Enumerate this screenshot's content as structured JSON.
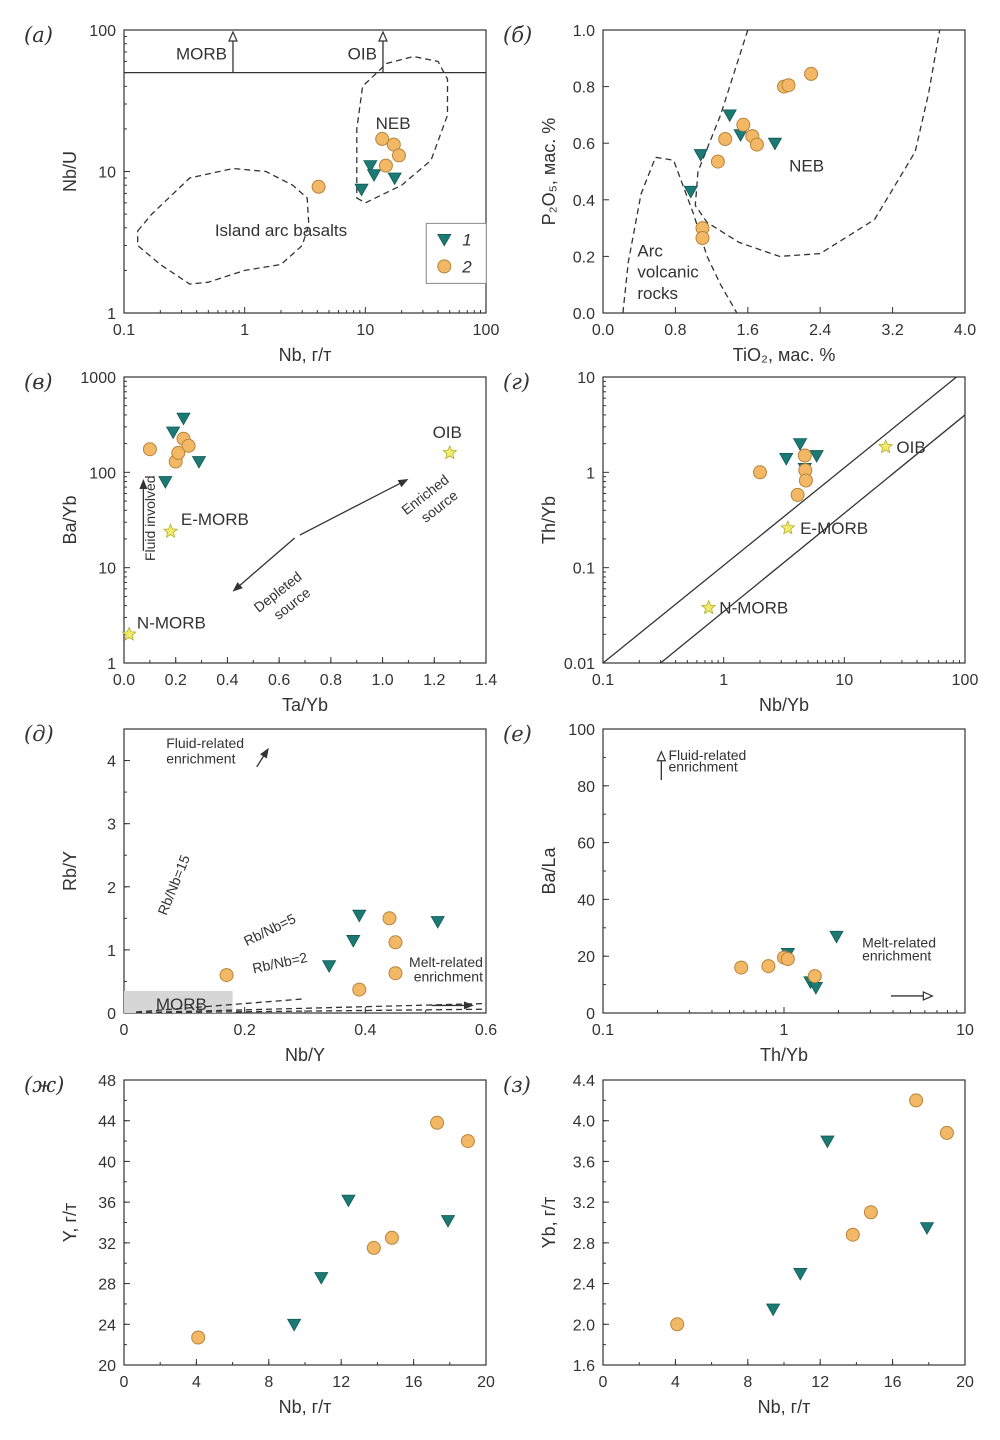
{
  "chart_data": [
    {
      "id": "a",
      "panel_label": "(а)",
      "type": "scatter",
      "xlabel": "Nb, г/т",
      "ylabel": "Nb/U",
      "x_scale": "log",
      "y_scale": "log",
      "xlim": [
        0.1,
        100
      ],
      "ylim": [
        1,
        100
      ],
      "x_ticks": [
        {
          "v": 0.1,
          "label": "0.1"
        },
        {
          "v": 1,
          "label": "1"
        },
        {
          "v": 10,
          "label": "10"
        },
        {
          "v": 100,
          "label": "100"
        }
      ],
      "y_ticks": [
        {
          "v": 1,
          "label": "1"
        },
        {
          "v": 10,
          "label": "10"
        },
        {
          "v": 100,
          "label": "100"
        }
      ],
      "minor_ticks": true,
      "annotations": [
        "MORB",
        "OIB",
        "NEB",
        "Island arc basalts"
      ],
      "reference_line": {
        "y": 50
      },
      "fields": [
        {
          "name": "NEB",
          "polygon": [
            [
              8.5,
              6.5
            ],
            [
              10,
              6
            ],
            [
              20,
              8
            ],
            [
              35,
              12
            ],
            [
              48,
              25
            ],
            [
              48,
              45
            ],
            [
              40,
              60
            ],
            [
              25,
              65
            ],
            [
              15,
              58
            ],
            [
              9.5,
              40
            ],
            [
              8.5,
              20
            ],
            [
              8.5,
              10
            ]
          ]
        },
        {
          "name": "Island arc basalts",
          "polygon": [
            [
              0.13,
              3.8
            ],
            [
              0.17,
              5
            ],
            [
              0.35,
              9
            ],
            [
              0.8,
              10.5
            ],
            [
              1.5,
              10
            ],
            [
              2.5,
              8
            ],
            [
              3.3,
              6.5
            ],
            [
              3.4,
              4.2
            ],
            [
              3,
              3
            ],
            [
              2,
              2.2
            ],
            [
              1,
              2
            ],
            [
              0.5,
              1.65
            ],
            [
              0.35,
              1.6
            ],
            [
              0.2,
              2.2
            ],
            [
              0.13,
              3
            ]
          ]
        }
      ],
      "legend": [
        {
          "marker": "triangle",
          "label": "1"
        },
        {
          "marker": "circle",
          "label": "2"
        }
      ],
      "series": [
        {
          "marker": "triangle",
          "x": [
            9.3,
            11,
            11.8,
            17.5
          ],
          "y": [
            7.5,
            11,
            9.5,
            9
          ]
        },
        {
          "marker": "circle",
          "x": [
            4.1,
            13.8,
            14.8,
            17.2,
            19
          ],
          "y": [
            7.8,
            17,
            11,
            15.5,
            13
          ]
        }
      ]
    },
    {
      "id": "b",
      "panel_label": "(б)",
      "type": "scatter",
      "xlabel": "TiO₂, мас. %",
      "ylabel": "P₂O₅, мас. %",
      "x_scale": "linear",
      "y_scale": "linear",
      "xlim": [
        0,
        4
      ],
      "ylim": [
        0,
        1
      ],
      "x_ticks": [
        {
          "v": 0,
          "label": "0.0"
        },
        {
          "v": 0.8,
          "label": "0.8"
        },
        {
          "v": 1.6,
          "label": "1.6"
        },
        {
          "v": 2.4,
          "label": "2.4"
        },
        {
          "v": 3.2,
          "label": "3.2"
        },
        {
          "v": 4,
          "label": "4.0"
        }
      ],
      "y_ticks": [
        {
          "v": 0,
          "label": "0.0"
        },
        {
          "v": 0.2,
          "label": "0.2"
        },
        {
          "v": 0.4,
          "label": "0.4"
        },
        {
          "v": 0.6,
          "label": "0.6"
        },
        {
          "v": 0.8,
          "label": "0.8"
        },
        {
          "v": 1,
          "label": "1.0"
        }
      ],
      "annotations": [
        "NEB",
        "Arc",
        "volcanic",
        "rocks"
      ],
      "fields": [
        {
          "name": "NEB",
          "polyline": [
            [
              1.6,
              1.0
            ],
            [
              1.3,
              0.7
            ],
            [
              1.05,
              0.5
            ],
            [
              1.02,
              0.38
            ],
            [
              1.15,
              0.32
            ],
            [
              1.5,
              0.25
            ],
            [
              1.95,
              0.2
            ],
            [
              2.4,
              0.21
            ],
            [
              3.0,
              0.33
            ],
            [
              3.45,
              0.57
            ],
            [
              3.6,
              0.78
            ],
            [
              3.72,
              1.0
            ]
          ]
        },
        {
          "name": "Arc volcanic rocks",
          "polyline": [
            [
              0.22,
              0.0
            ],
            [
              0.28,
              0.18
            ],
            [
              0.42,
              0.42
            ],
            [
              0.58,
              0.55
            ],
            [
              0.78,
              0.54
            ],
            [
              1.0,
              0.35
            ],
            [
              1.15,
              0.2
            ],
            [
              1.3,
              0.1
            ],
            [
              1.48,
              0.0
            ]
          ]
        }
      ],
      "series": [
        {
          "marker": "triangle",
          "x": [
            0.97,
            1.08,
            1.4,
            1.52,
            1.9
          ],
          "y": [
            0.43,
            0.56,
            0.7,
            0.63,
            0.6
          ]
        },
        {
          "marker": "circle",
          "x": [
            1.1,
            1.1,
            1.27,
            1.35,
            1.55,
            1.65,
            1.7,
            2.0,
            2.05,
            2.3
          ],
          "y": [
            0.3,
            0.265,
            0.535,
            0.615,
            0.665,
            0.625,
            0.595,
            0.8,
            0.805,
            0.845
          ]
        }
      ]
    },
    {
      "id": "v",
      "panel_label": "(в)",
      "type": "scatter",
      "xlabel": "Ta/Yb",
      "ylabel": "Ba/Yb",
      "x_scale": "linear",
      "y_scale": "log",
      "xlim": [
        0,
        1.4
      ],
      "ylim": [
        1,
        1000
      ],
      "x_ticks": [
        {
          "v": 0,
          "label": "0.0"
        },
        {
          "v": 0.2,
          "label": "0.2"
        },
        {
          "v": 0.4,
          "label": "0.4"
        },
        {
          "v": 0.6,
          "label": "0.6"
        },
        {
          "v": 0.8,
          "label": "0.8"
        },
        {
          "v": 1.0,
          "label": "1.0"
        },
        {
          "v": 1.2,
          "label": "1.2"
        },
        {
          "v": 1.4,
          "label": "1.4"
        }
      ],
      "y_ticks": [
        {
          "v": 1,
          "label": "1"
        },
        {
          "v": 10,
          "label": "10"
        },
        {
          "v": 100,
          "label": "100"
        },
        {
          "v": 1000,
          "label": "1000"
        }
      ],
      "minor_ticks": true,
      "annotations": [
        "OIB",
        "E-MORB",
        "N-MORB",
        "Fluid involved",
        "Enriched",
        "source",
        "Depleted",
        "source"
      ],
      "reference_points": [
        {
          "name": "OIB",
          "x": 1.26,
          "y": 160
        },
        {
          "name": "E-MORB",
          "x": 0.18,
          "y": 24
        },
        {
          "name": "N-MORB",
          "x": 0.02,
          "y": 2
        }
      ],
      "series": [
        {
          "marker": "triangle",
          "x": [
            0.16,
            0.19,
            0.23,
            0.29
          ],
          "y": [
            80,
            265,
            370,
            130
          ]
        },
        {
          "marker": "circle",
          "x": [
            0.1,
            0.2,
            0.21,
            0.23,
            0.25
          ],
          "y": [
            175,
            130,
            160,
            225,
            190
          ]
        }
      ]
    },
    {
      "id": "g",
      "panel_label": "(г)",
      "type": "scatter",
      "xlabel": "Nb/Yb",
      "ylabel": "Th/Yb",
      "x_scale": "log",
      "y_scale": "log",
      "xlim": [
        0.1,
        100
      ],
      "ylim": [
        0.01,
        10
      ],
      "x_ticks": [
        {
          "v": 0.1,
          "label": "0.1"
        },
        {
          "v": 1,
          "label": "1"
        },
        {
          "v": 10,
          "label": "10"
        },
        {
          "v": 100,
          "label": "100"
        }
      ],
      "y_ticks": [
        {
          "v": 0.01,
          "label": "0.01"
        },
        {
          "v": 0.1,
          "label": "0.1"
        },
        {
          "v": 1,
          "label": "1"
        },
        {
          "v": 10,
          "label": "10"
        }
      ],
      "minor_ticks": true,
      "annotations": [
        "OIB",
        "E-MORB",
        "N-MORB"
      ],
      "reference_lines": [
        {
          "from": [
            0.1,
            0.01
          ],
          "to": [
            85,
            10
          ]
        },
        {
          "from": [
            0.3,
            0.01
          ],
          "to": [
            100,
            4
          ]
        }
      ],
      "reference_points": [
        {
          "name": "OIB",
          "x": 22,
          "y": 1.85
        },
        {
          "name": "E-MORB",
          "x": 3.4,
          "y": 0.26
        },
        {
          "name": "N-MORB",
          "x": 0.75,
          "y": 0.038
        }
      ],
      "series": [
        {
          "marker": "triangle",
          "x": [
            3.3,
            4.3,
            4.7,
            5.9
          ],
          "y": [
            1.4,
            2.0,
            1.1,
            1.5
          ]
        },
        {
          "marker": "circle",
          "x": [
            2.0,
            4.1,
            4.7,
            4.75,
            4.8
          ],
          "y": [
            1.0,
            0.58,
            1.5,
            1.05,
            0.82
          ]
        }
      ]
    },
    {
      "id": "d",
      "panel_label": "(д)",
      "type": "scatter",
      "xlabel": "Nb/Y",
      "ylabel": "Rb/Y",
      "x_scale": "linear",
      "y_scale": "linear",
      "xlim": [
        0,
        0.6
      ],
      "ylim": [
        0,
        4.5
      ],
      "x_ticks": [
        {
          "v": 0,
          "label": "0"
        },
        {
          "v": 0.2,
          "label": "0.2"
        },
        {
          "v": 0.4,
          "label": "0.4"
        },
        {
          "v": 0.6,
          "label": "0.6"
        }
      ],
      "y_ticks": [
        {
          "v": 0,
          "label": "0"
        },
        {
          "v": 1,
          "label": "1"
        },
        {
          "v": 2,
          "label": "2"
        },
        {
          "v": 3,
          "label": "3"
        },
        {
          "v": 4,
          "label": "4"
        }
      ],
      "minor_ticks": true,
      "annotations": [
        "Fluid-related",
        "enrichment",
        "Rb/Nb=15",
        "Rb/Nb=5",
        "Rb/Nb=2",
        "Melt-related",
        "enrichment",
        "MORB"
      ],
      "reference_lines": [
        {
          "name": "Rb/Nb=15",
          "slope": 15
        },
        {
          "name": "Rb/Nb=5",
          "slope": 5
        },
        {
          "name": "Rb/Nb=2",
          "slope": 2
        }
      ],
      "morb_field": {
        "x": [
          0,
          0.18
        ],
        "y": [
          0,
          0.35
        ]
      },
      "series": [
        {
          "marker": "triangle",
          "x": [
            0.34,
            0.38,
            0.39,
            0.52
          ],
          "y": [
            0.75,
            1.15,
            1.55,
            1.45
          ]
        },
        {
          "marker": "circle",
          "x": [
            0.17,
            0.39,
            0.44,
            0.45,
            0.45
          ],
          "y": [
            0.6,
            0.37,
            1.5,
            0.63,
            1.12
          ]
        }
      ]
    },
    {
      "id": "e",
      "panel_label": "(е)",
      "type": "scatter",
      "xlabel": "Th/Yb",
      "ylabel": "Ba/La",
      "x_scale": "log",
      "y_scale": "linear",
      "xlim": [
        0.1,
        10
      ],
      "ylim": [
        0,
        100
      ],
      "x_ticks": [
        {
          "v": 0.1,
          "label": "0.1"
        },
        {
          "v": 1,
          "label": "1"
        },
        {
          "v": 10,
          "label": "10"
        }
      ],
      "y_ticks": [
        {
          "v": 0,
          "label": "0"
        },
        {
          "v": 20,
          "label": "20"
        },
        {
          "v": 40,
          "label": "40"
        },
        {
          "v": 60,
          "label": "60"
        },
        {
          "v": 80,
          "label": "80"
        },
        {
          "v": 100,
          "label": "100"
        }
      ],
      "minor_ticks": true,
      "annotations": [
        "Fluid-related",
        "enrichment",
        "Melt-related",
        "enrichment"
      ],
      "series": [
        {
          "marker": "triangle",
          "x": [
            1.05,
            1.4,
            1.5,
            1.95
          ],
          "y": [
            21,
            11,
            9,
            27
          ]
        },
        {
          "marker": "circle",
          "x": [
            0.58,
            0.82,
            1.0,
            1.05,
            1.48
          ],
          "y": [
            16,
            16.5,
            19.5,
            19,
            13
          ]
        }
      ]
    },
    {
      "id": "zh",
      "panel_label": "(ж)",
      "type": "scatter",
      "xlabel": "Nb, г/т",
      "ylabel": "Y, г/т",
      "x_scale": "linear",
      "y_scale": "linear",
      "xlim": [
        0,
        20
      ],
      "ylim": [
        20,
        48
      ],
      "x_ticks": [
        {
          "v": 0,
          "label": "0"
        },
        {
          "v": 4,
          "label": "4"
        },
        {
          "v": 8,
          "label": "8"
        },
        {
          "v": 12,
          "label": "12"
        },
        {
          "v": 16,
          "label": "16"
        },
        {
          "v": 20,
          "label": "20"
        }
      ],
      "y_ticks": [
        {
          "v": 20,
          "label": "20"
        },
        {
          "v": 24,
          "label": "24"
        },
        {
          "v": 28,
          "label": "28"
        },
        {
          "v": 32,
          "label": "32"
        },
        {
          "v": 36,
          "label": "36"
        },
        {
          "v": 40,
          "label": "40"
        },
        {
          "v": 44,
          "label": "44"
        },
        {
          "v": 48,
          "label": "48"
        }
      ],
      "minor_ticks": true,
      "series": [
        {
          "marker": "triangle",
          "x": [
            9.4,
            10.9,
            12.4,
            17.9
          ],
          "y": [
            24,
            28.6,
            36.2,
            34.2
          ]
        },
        {
          "marker": "circle",
          "x": [
            4.1,
            13.8,
            14.8,
            17.3,
            19
          ],
          "y": [
            22.7,
            31.5,
            32.5,
            43.8,
            42
          ]
        }
      ]
    },
    {
      "id": "z",
      "panel_label": "(з)",
      "type": "scatter",
      "xlabel": "Nb, г/т",
      "ylabel": "Yb, г/т",
      "x_scale": "linear",
      "y_scale": "linear",
      "xlim": [
        0,
        20
      ],
      "ylim": [
        1.6,
        4.4
      ],
      "x_ticks": [
        {
          "v": 0,
          "label": "0"
        },
        {
          "v": 4,
          "label": "4"
        },
        {
          "v": 8,
          "label": "8"
        },
        {
          "v": 12,
          "label": "12"
        },
        {
          "v": 16,
          "label": "16"
        },
        {
          "v": 20,
          "label": "20"
        }
      ],
      "y_ticks": [
        {
          "v": 1.6,
          "label": "1.6"
        },
        {
          "v": 2.0,
          "label": "2.0"
        },
        {
          "v": 2.4,
          "label": "2.4"
        },
        {
          "v": 2.8,
          "label": "2.8"
        },
        {
          "v": 3.2,
          "label": "3.2"
        },
        {
          "v": 3.6,
          "label": "3.6"
        },
        {
          "v": 4.0,
          "label": "4.0"
        },
        {
          "v": 4.4,
          "label": "4.4"
        }
      ],
      "minor_ticks": true,
      "series": [
        {
          "marker": "triangle",
          "x": [
            9.4,
            10.9,
            12.4,
            17.9
          ],
          "y": [
            2.15,
            2.5,
            3.8,
            2.95
          ]
        },
        {
          "marker": "circle",
          "x": [
            4.1,
            13.8,
            14.8,
            17.3,
            19
          ],
          "y": [
            2.0,
            2.88,
            3.1,
            4.2,
            3.88
          ]
        }
      ]
    }
  ]
}
